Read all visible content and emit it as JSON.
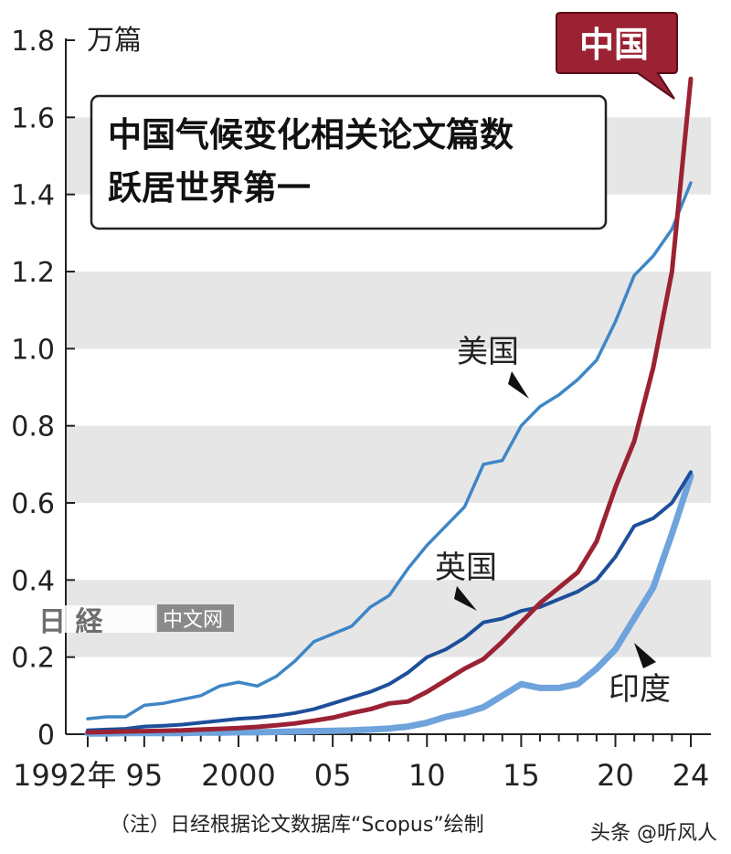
{
  "chart_data": {
    "type": "line",
    "title": "中国气候变化相关论文篇数",
    "subtitle": "跃居世界第一",
    "ylabel": "万篇",
    "ylim": [
      0,
      1.8
    ],
    "yticks": [
      0,
      0.2,
      0.4,
      0.6,
      0.8,
      1.0,
      1.2,
      1.4,
      1.6,
      1.8
    ],
    "ytick_labels": [
      "0",
      "0.2",
      "0.4",
      "0.6",
      "0.8",
      "1.0",
      "1.2",
      "1.4",
      "1.6",
      "1.8"
    ],
    "xlim": [
      1992,
      2024
    ],
    "xticks": [
      1992,
      1995,
      2000,
      2005,
      2010,
      2015,
      2020,
      2024
    ],
    "xtick_labels": [
      "1992年",
      "95",
      "2000",
      "05",
      "10",
      "15",
      "20",
      "24"
    ],
    "grid": "alternating horizontal bands",
    "x": [
      1992,
      1993,
      1994,
      1995,
      1996,
      1997,
      1998,
      1999,
      2000,
      2001,
      2002,
      2003,
      2004,
      2005,
      2006,
      2007,
      2008,
      2009,
      2010,
      2011,
      2012,
      2013,
      2014,
      2015,
      2016,
      2017,
      2018,
      2019,
      2020,
      2021,
      2022,
      2023,
      2024
    ],
    "series": [
      {
        "name": "中国",
        "color": "#9b2233",
        "values": [
          0.005,
          0.006,
          0.007,
          0.008,
          0.009,
          0.01,
          0.012,
          0.014,
          0.016,
          0.019,
          0.023,
          0.028,
          0.035,
          0.043,
          0.055,
          0.065,
          0.08,
          0.085,
          0.11,
          0.14,
          0.17,
          0.195,
          0.24,
          0.29,
          0.34,
          0.38,
          0.42,
          0.5,
          0.64,
          0.76,
          0.95,
          1.2,
          1.7
        ]
      },
      {
        "name": "美国",
        "color": "#3f86c6",
        "values": [
          0.04,
          0.045,
          0.045,
          0.075,
          0.08,
          0.09,
          0.1,
          0.125,
          0.135,
          0.125,
          0.15,
          0.19,
          0.24,
          0.26,
          0.28,
          0.33,
          0.36,
          0.43,
          0.49,
          0.54,
          0.59,
          0.7,
          0.71,
          0.8,
          0.85,
          0.88,
          0.92,
          0.97,
          1.07,
          1.19,
          1.24,
          1.31,
          1.43
        ]
      },
      {
        "name": "英国",
        "color": "#1d4f9a",
        "values": [
          0.01,
          0.012,
          0.014,
          0.02,
          0.022,
          0.025,
          0.03,
          0.035,
          0.04,
          0.043,
          0.048,
          0.055,
          0.065,
          0.08,
          0.095,
          0.11,
          0.13,
          0.16,
          0.2,
          0.22,
          0.25,
          0.29,
          0.3,
          0.32,
          0.33,
          0.35,
          0.37,
          0.4,
          0.46,
          0.54,
          0.56,
          0.6,
          0.68
        ]
      },
      {
        "name": "印度",
        "color": "#6ea3dc",
        "values": [
          0.002,
          0.002,
          0.003,
          0.003,
          0.003,
          0.003,
          0.004,
          0.004,
          0.005,
          0.005,
          0.006,
          0.007,
          0.008,
          0.009,
          0.01,
          0.012,
          0.015,
          0.02,
          0.03,
          0.045,
          0.055,
          0.07,
          0.1,
          0.13,
          0.12,
          0.12,
          0.13,
          0.17,
          0.22,
          0.3,
          0.38,
          0.52,
          0.67
        ]
      }
    ],
    "callout_label": "中国",
    "note": "（注）日经根据论文数据库“Scopus”绘制",
    "watermark_text": "中文网"
  },
  "credit": "头条 @听风人"
}
